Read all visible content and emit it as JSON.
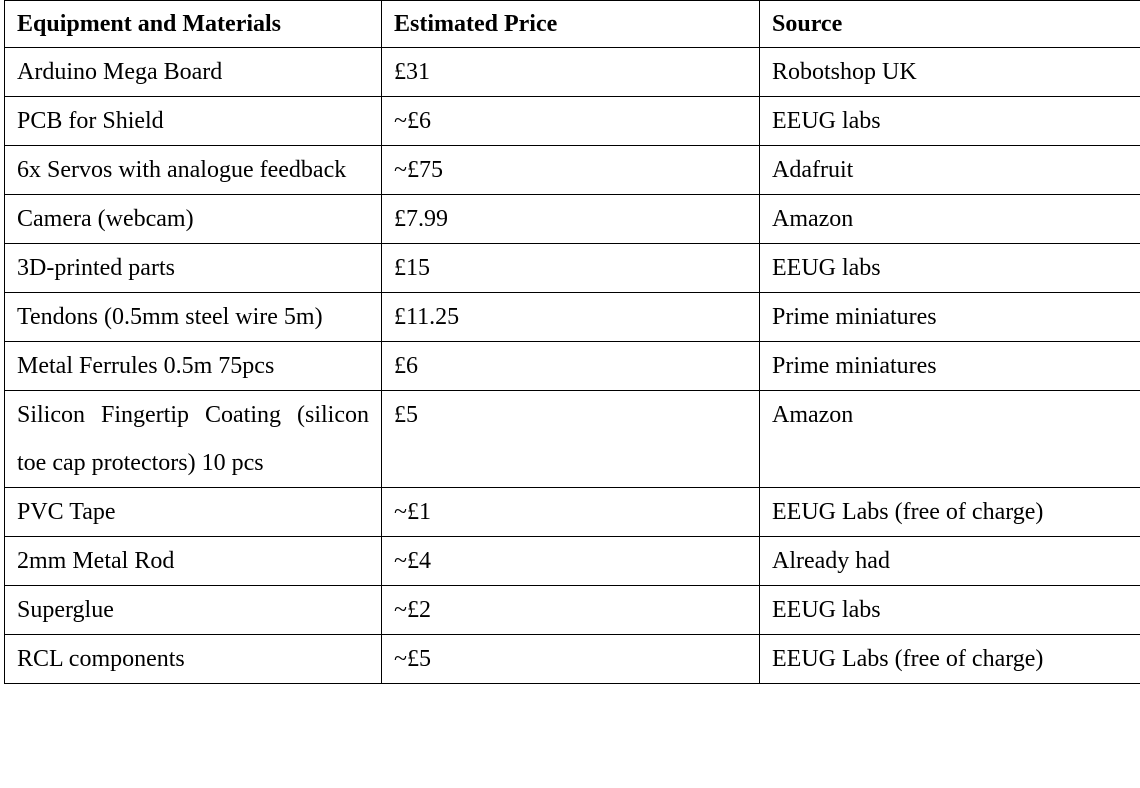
{
  "table": {
    "headers": [
      "Equipment and Materials",
      "Estimated Price",
      "Source"
    ],
    "rows": [
      {
        "item": "Arduino Mega Board",
        "price": "£31",
        "source": "Robotshop UK"
      },
      {
        "item": "PCB for Shield",
        "price": "~£6",
        "source": "EEUG labs"
      },
      {
        "item": "6x Servos with analogue feedback",
        "price": "~£75",
        "source": "Adafruit"
      },
      {
        "item": "Camera (webcam)",
        "price": "£7.99",
        "source": "Amazon"
      },
      {
        "item": "3D-printed parts",
        "price": "£15",
        "source": "EEUG labs"
      },
      {
        "item": "Tendons (0.5mm steel wire 5m)",
        "price": "£11.25",
        "source": "Prime miniatures"
      },
      {
        "item": "Metal Ferrules 0.5m 75pcs",
        "price": "£6",
        "source": "Prime miniatures"
      },
      {
        "item": "Silicon Fingertip Coating (silicon toe cap protectors) 10 pcs",
        "price": "£5",
        "source": "Amazon"
      },
      {
        "item": "PVC Tape",
        "price": "~£1",
        "source": "EEUG Labs (free of charge)"
      },
      {
        "item": "2mm Metal Rod",
        "price": "~£4",
        "source": "Already had"
      },
      {
        "item": "Superglue",
        "price": "~£2",
        "source": "EEUG labs"
      },
      {
        "item": "RCL components",
        "price": "~£5",
        "source": "EEUG Labs (free of charge)"
      }
    ]
  }
}
